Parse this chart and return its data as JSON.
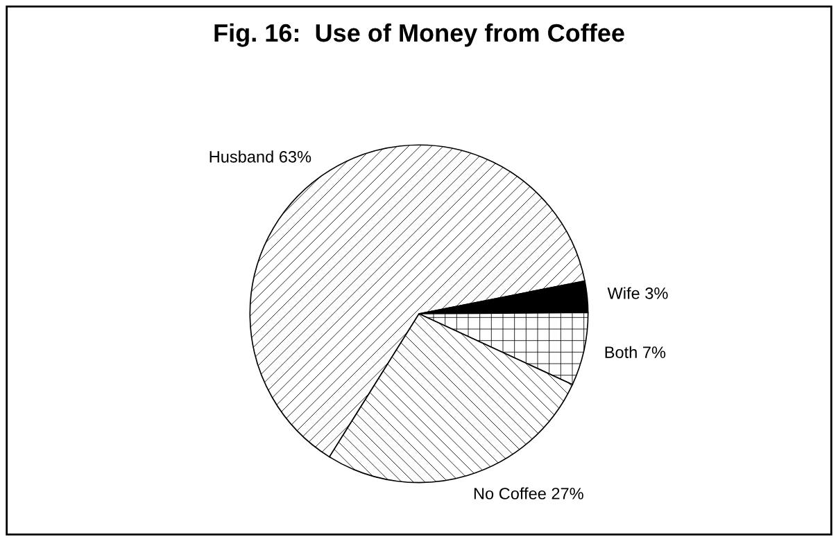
{
  "chart_data": {
    "type": "pie",
    "title": "Fig. 16:  Use of Money from Coffee",
    "categories": [
      "Husband",
      "Wife",
      "Both",
      "No Coffee"
    ],
    "values": [
      63,
      3,
      7,
      27
    ],
    "value_labels": [
      "63%",
      "3%",
      "7%",
      "27%"
    ],
    "colors": [
      "#ffffff",
      "#000000",
      "#ffffff",
      "#ffffff"
    ]
  }
}
